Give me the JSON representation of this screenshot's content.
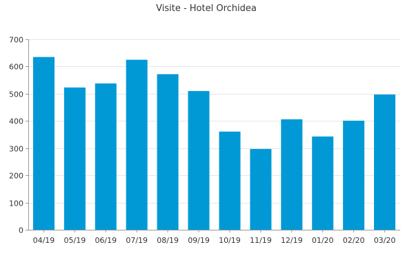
{
  "chart_data": {
    "type": "bar",
    "title": "Visite - Hotel Orchidea",
    "xlabel": "",
    "ylabel": "",
    "categories": [
      "04/19",
      "05/19",
      "06/19",
      "07/19",
      "08/19",
      "09/19",
      "10/19",
      "11/19",
      "12/19",
      "01/20",
      "02/20",
      "03/20"
    ],
    "values": [
      635,
      523,
      538,
      625,
      572,
      510,
      361,
      297,
      406,
      343,
      401,
      497
    ],
    "ylim": [
      0,
      700
    ],
    "yticks": [
      "0",
      "100",
      "200",
      "300",
      "400",
      "500",
      "600",
      "700"
    ],
    "grid": true,
    "legend": "none",
    "bar_color": "#0099d6"
  }
}
